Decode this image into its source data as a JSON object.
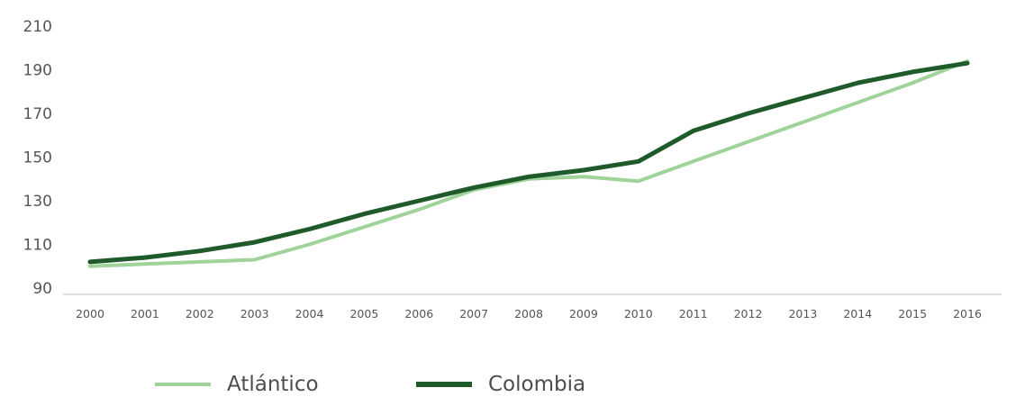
{
  "chart_data": {
    "type": "line",
    "x": [
      "2000",
      "2001",
      "2002",
      "2003",
      "2004",
      "2005",
      "2006",
      "2007",
      "2008",
      "2009",
      "2010",
      "2011",
      "2012",
      "2013",
      "2014",
      "2015",
      "2016"
    ],
    "y_ticks": [
      "90",
      "110",
      "130",
      "150",
      "170",
      "190",
      "210"
    ],
    "ylim": [
      90,
      210
    ],
    "grid": false,
    "legend_position": "bottom",
    "title": "",
    "xlabel": "",
    "ylabel": "",
    "series": [
      {
        "name": "Atlántico",
        "color": "#9fd39a",
        "values": [
          100,
          101,
          102,
          103,
          110,
          118,
          126,
          135,
          140,
          141,
          139,
          148,
          157,
          166,
          175,
          184,
          194
        ]
      },
      {
        "name": "Colombia",
        "color": "#1f5b2a",
        "values": [
          102,
          104,
          107,
          111,
          117,
          124,
          130,
          136,
          141,
          144,
          148,
          162,
          170,
          177,
          184,
          189,
          193
        ]
      }
    ]
  }
}
